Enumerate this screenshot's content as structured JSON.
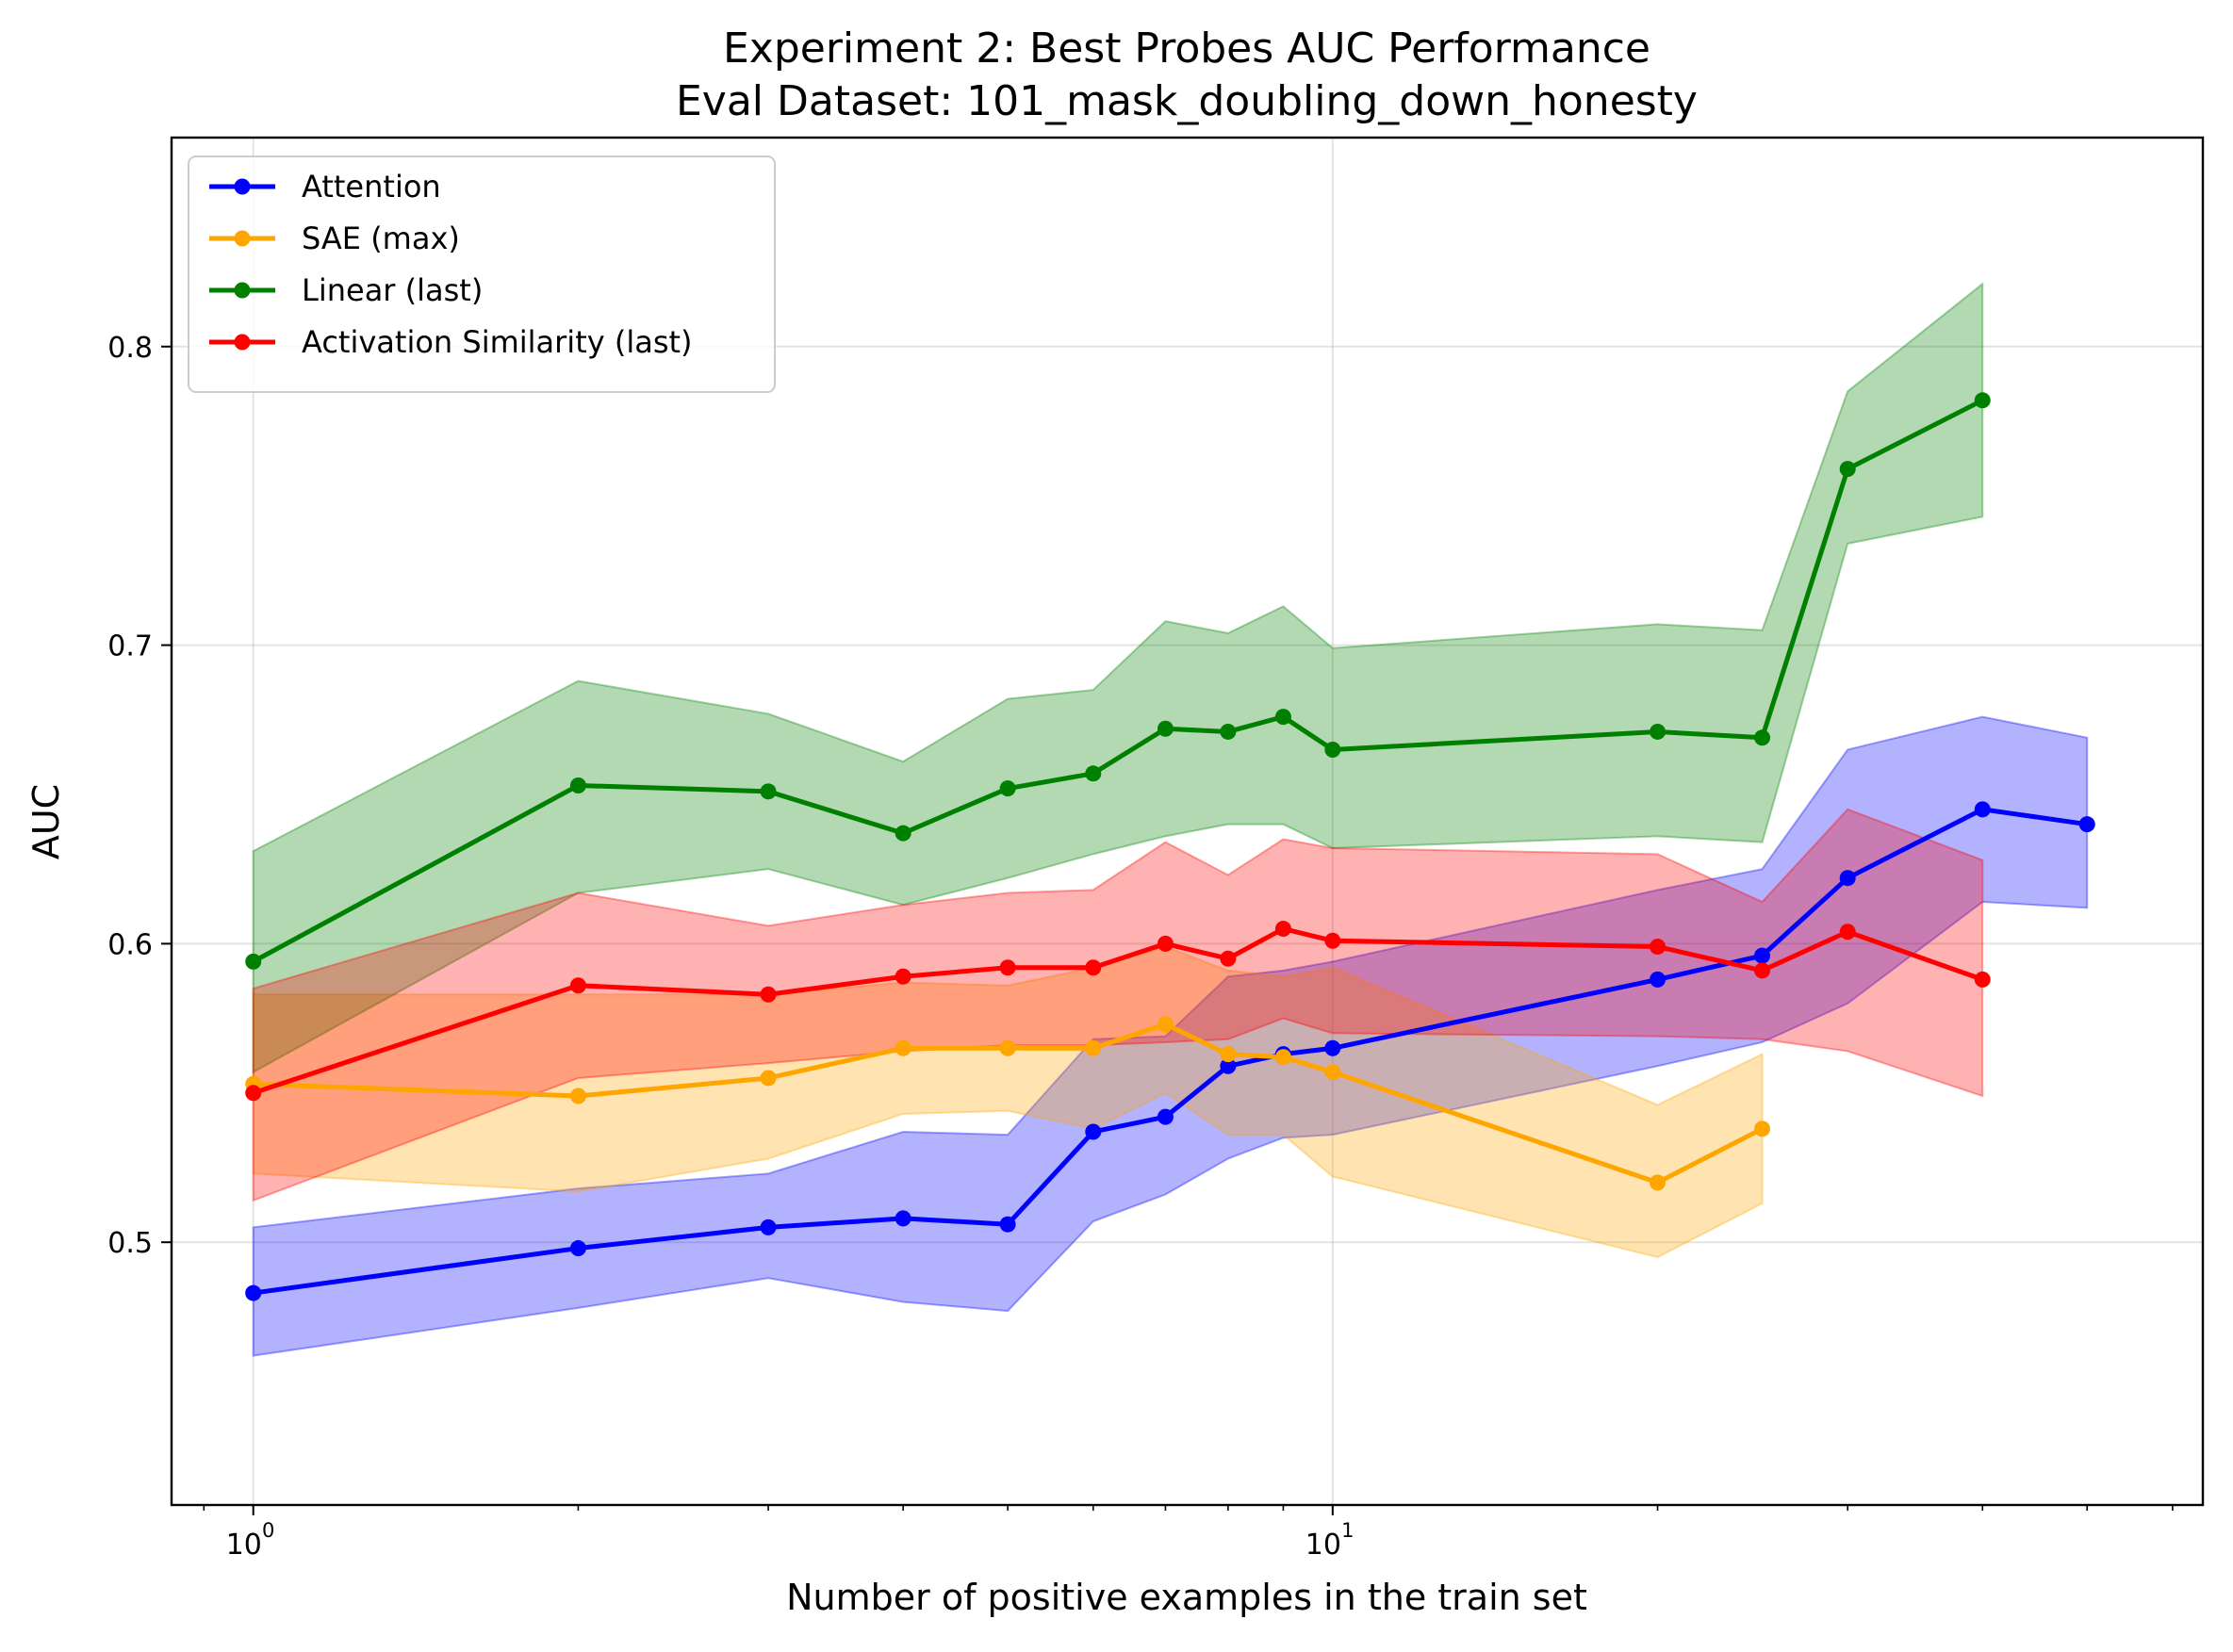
{
  "chart_data": {
    "type": "line",
    "title": "Experiment 2: Best Probes AUC Performance",
    "subtitle": "Eval Dataset: 101_mask_doubling_down_honesty",
    "xlabel": "Number of positive examples in the train set",
    "ylabel": "AUC",
    "x_scale": "log",
    "xlim": [
      0.84,
      64
    ],
    "ylim": [
      0.412,
      0.87
    ],
    "grid": true,
    "legend_position": "top-left",
    "x_ticks": [
      {
        "value": 1,
        "base": "10",
        "exp": "0"
      },
      {
        "value": 10,
        "base": "10",
        "exp": "1"
      }
    ],
    "y_ticks": [
      {
        "value": 0.5,
        "label": "0.5"
      },
      {
        "value": 0.6,
        "label": "0.6"
      },
      {
        "value": 0.7,
        "label": "0.7"
      },
      {
        "value": 0.8,
        "label": "0.8"
      }
    ],
    "series": [
      {
        "name": "Attention",
        "color": "#0000ff",
        "x": [
          1,
          2,
          3,
          4,
          5,
          6,
          7,
          8,
          9,
          10,
          20,
          25,
          30,
          40,
          50
        ],
        "y": [
          0.483,
          0.498,
          0.505,
          0.508,
          0.506,
          0.537,
          0.542,
          0.559,
          0.563,
          0.565,
          0.588,
          0.596,
          0.622,
          0.645,
          0.64
        ],
        "lower": [
          0.462,
          0.478,
          0.488,
          0.48,
          0.477,
          0.507,
          0.516,
          0.528,
          0.535,
          0.536,
          0.559,
          0.567,
          0.58,
          0.614,
          0.612
        ],
        "upper": [
          0.505,
          0.518,
          0.523,
          0.537,
          0.536,
          0.568,
          0.569,
          0.589,
          0.591,
          0.594,
          0.618,
          0.625,
          0.665,
          0.676,
          0.669
        ]
      },
      {
        "name": "SAE (max)",
        "color": "#ffa500",
        "x": [
          1,
          2,
          3,
          4,
          5,
          6,
          7,
          8,
          9,
          10,
          20,
          25
        ],
        "y": [
          0.553,
          0.549,
          0.555,
          0.565,
          0.565,
          0.565,
          0.573,
          0.563,
          0.562,
          0.557,
          0.52,
          0.538
        ],
        "lower": [
          0.523,
          0.517,
          0.528,
          0.543,
          0.544,
          0.538,
          0.55,
          0.536,
          0.536,
          0.522,
          0.495,
          0.513
        ],
        "upper": [
          0.583,
          0.583,
          0.583,
          0.587,
          0.586,
          0.592,
          0.599,
          0.591,
          0.589,
          0.592,
          0.546,
          0.563
        ]
      },
      {
        "name": "Linear (last)",
        "color": "#008000",
        "x": [
          1,
          2,
          3,
          4,
          5,
          6,
          7,
          8,
          9,
          10,
          20,
          25,
          30,
          40
        ],
        "y": [
          0.594,
          0.653,
          0.651,
          0.637,
          0.652,
          0.657,
          0.672,
          0.671,
          0.676,
          0.665,
          0.671,
          0.669,
          0.759,
          0.782
        ],
        "lower": [
          0.557,
          0.617,
          0.625,
          0.613,
          0.622,
          0.63,
          0.636,
          0.64,
          0.64,
          0.632,
          0.636,
          0.634,
          0.734,
          0.743
        ],
        "upper": [
          0.631,
          0.688,
          0.677,
          0.661,
          0.682,
          0.685,
          0.708,
          0.704,
          0.713,
          0.699,
          0.707,
          0.705,
          0.785,
          0.821
        ]
      },
      {
        "name": "Activation Similarity (last)",
        "color": "#ff0000",
        "x": [
          1,
          2,
          3,
          4,
          5,
          6,
          7,
          8,
          9,
          10,
          20,
          25,
          30,
          40
        ],
        "y": [
          0.55,
          0.586,
          0.583,
          0.589,
          0.592,
          0.592,
          0.6,
          0.595,
          0.605,
          0.601,
          0.599,
          0.591,
          0.604,
          0.588
        ],
        "lower": [
          0.514,
          0.555,
          0.56,
          0.564,
          0.566,
          0.566,
          0.567,
          0.568,
          0.575,
          0.57,
          0.569,
          0.568,
          0.564,
          0.549
        ],
        "upper": [
          0.585,
          0.617,
          0.606,
          0.613,
          0.617,
          0.618,
          0.634,
          0.623,
          0.635,
          0.632,
          0.63,
          0.614,
          0.645,
          0.628
        ]
      }
    ]
  }
}
